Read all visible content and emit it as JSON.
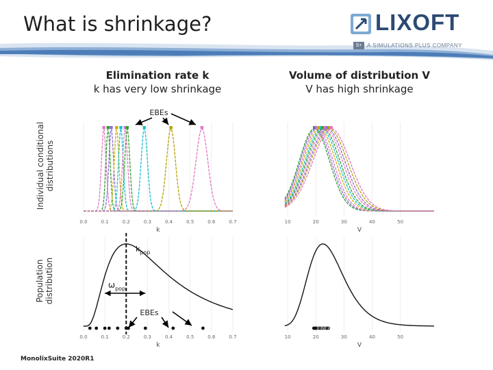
{
  "slide": {
    "title": "What is shrinkage?",
    "logo": {
      "name": "LIXOFT",
      "badge": "S+",
      "tagline": "A SIMULATIONS PLUS COMPANY"
    },
    "left_heading": {
      "line1": "Elimination rate k",
      "line2": "k has very low shrinkage"
    },
    "right_heading": {
      "line1": "Volume of distribution V",
      "line2": "V has high shrinkage"
    },
    "row_labels": {
      "top": {
        "line1": "Individual conditional",
        "line2": "distributions"
      },
      "bottom": {
        "line1": "Population",
        "line2": "distribution"
      }
    },
    "annotations": {
      "ebes_top": "EBEs",
      "ebes_bottom": "EBEs",
      "kpop": "k",
      "kpop_sub": "pop",
      "omega": "ω",
      "omega_sub": "pop"
    },
    "footer": "MonolixSuite 2020R1"
  },
  "chart_data": [
    {
      "type": "line",
      "panel": "individual-k",
      "xlabel": "k",
      "x_ticks": [
        "0.0",
        "0.1",
        "0.2",
        "0.3",
        "0.4",
        "0.5",
        "0.6",
        "0.7"
      ],
      "xlim": [
        0.0,
        0.7
      ],
      "series": [
        {
          "color": "#e377c2",
          "mean": 0.095,
          "sd": 0.011
        },
        {
          "color": "#2ca02c",
          "mean": 0.115,
          "sd": 0.01
        },
        {
          "color": "#8c6bd6",
          "mean": 0.13,
          "sd": 0.011
        },
        {
          "color": "#c8b000",
          "mean": 0.155,
          "sd": 0.011
        },
        {
          "color": "#17becf",
          "mean": 0.175,
          "sd": 0.011
        },
        {
          "color": "#e377c2",
          "mean": 0.195,
          "sd": 0.012
        },
        {
          "color": "#2ca02c",
          "mean": 0.205,
          "sd": 0.012
        },
        {
          "color": "#17becf",
          "mean": 0.285,
          "sd": 0.015
        },
        {
          "color": "#b8a000",
          "mean": 0.41,
          "sd": 0.021
        },
        {
          "color": "#e377c2",
          "mean": 0.555,
          "sd": 0.028
        }
      ]
    },
    {
      "type": "line",
      "panel": "individual-V",
      "xlabel": "V",
      "x_ticks": [
        "10",
        "20",
        "30",
        "40",
        "50"
      ],
      "xlim": [
        9,
        62
      ],
      "series": [
        {
          "color": "#2ca02c",
          "mean": 19.5,
          "sd": 5.4
        },
        {
          "color": "#8c6bd6",
          "mean": 20.0,
          "sd": 5.5
        },
        {
          "color": "#e377c2",
          "mean": 20.6,
          "sd": 5.6
        },
        {
          "color": "#c8b000",
          "mean": 21.3,
          "sd": 5.8
        },
        {
          "color": "#17becf",
          "mean": 22.0,
          "sd": 5.9
        },
        {
          "color": "#2ca02c",
          "mean": 22.6,
          "sd": 6.0
        },
        {
          "color": "#e377c2",
          "mean": 23.3,
          "sd": 6.2
        },
        {
          "color": "#8c6bd6",
          "mean": 24.0,
          "sd": 6.3
        },
        {
          "color": "#b8a000",
          "mean": 24.7,
          "sd": 6.5
        },
        {
          "color": "#e377c2",
          "mean": 25.5,
          "sd": 6.6
        }
      ]
    },
    {
      "type": "line",
      "panel": "population-k",
      "xlabel": "k",
      "x_ticks": [
        "0.0",
        "0.1",
        "0.2",
        "0.3",
        "0.4",
        "0.5",
        "0.6",
        "0.7"
      ],
      "xlim": [
        0.0,
        0.7
      ],
      "distribution": "lognormal",
      "mode": 0.2,
      "ebes": [
        0.03,
        0.06,
        0.1,
        0.12,
        0.16,
        0.2,
        0.21,
        0.29,
        0.42,
        0.56
      ]
    },
    {
      "type": "line",
      "panel": "population-V",
      "xlabel": "V",
      "x_ticks": [
        "10",
        "20",
        "30",
        "40",
        "50"
      ],
      "xlim": [
        9,
        62
      ],
      "distribution": "lognormal",
      "mode": 22.5,
      "ebes": [
        19.3,
        19.7,
        20.1,
        20.6,
        21.0,
        21.5,
        22.0,
        22.4,
        22.9,
        23.3,
        23.9,
        24.5
      ]
    }
  ]
}
